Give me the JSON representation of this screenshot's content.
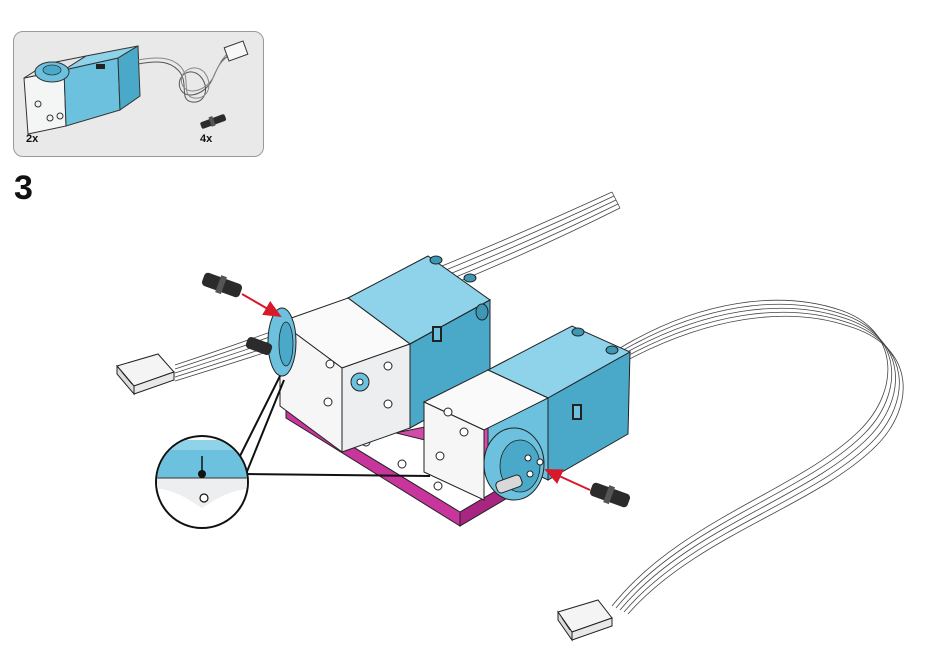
{
  "parts_list": {
    "items": [
      {
        "part": "medium-angular-motor",
        "quantity": "2x"
      },
      {
        "part": "black-friction-pin",
        "quantity": "4x"
      }
    ]
  },
  "step": {
    "number": "3"
  },
  "colors": {
    "motor_blue": "#6cc2de",
    "motor_white": "#f4f5f5",
    "frame_magenta": "#c8359c",
    "pin_black": "#2b2b2b",
    "arrow_red": "#d8192a",
    "parts_box_bg": "#e9e9ea"
  },
  "icons": [
    "motor-icon",
    "cable-icon",
    "pin-icon",
    "arrow-icon",
    "zoom-callout-icon"
  ]
}
